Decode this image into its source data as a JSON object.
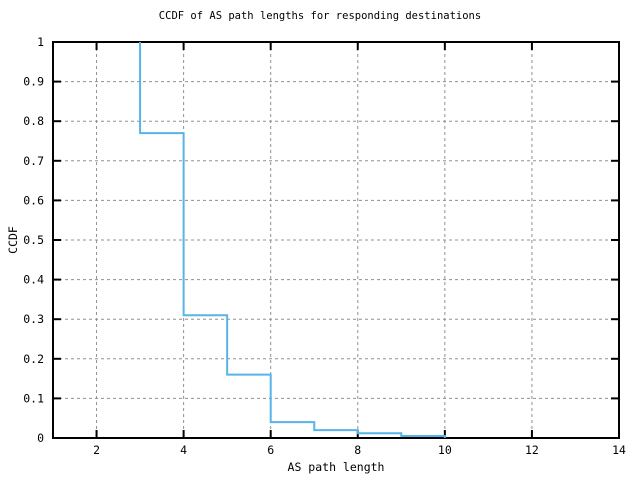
{
  "chart_data": {
    "type": "line",
    "subtype": "step-ccdf",
    "title": "CCDF of AS path lengths for responding destinations",
    "xlabel": "AS path length",
    "ylabel": "CCDF",
    "xlim": [
      1,
      14
    ],
    "ylim": [
      0,
      1
    ],
    "grid": true,
    "legend": "none",
    "xticks": {
      "values": [
        2,
        4,
        6,
        8,
        10,
        12,
        14
      ],
      "labels": [
        "2",
        "4",
        "6",
        "8",
        "10",
        "12",
        "14"
      ]
    },
    "yticks": {
      "values": [
        0,
        0.1,
        0.2,
        0.3,
        0.4,
        0.5,
        0.6,
        0.7,
        0.8,
        0.9,
        1
      ],
      "labels": [
        "0",
        "0.1",
        "0.2",
        "0.3",
        "0.4",
        "0.5",
        "0.6",
        "0.7",
        "0.8",
        "0.9",
        "1"
      ]
    },
    "series": [
      {
        "name": "CCDF of AS path length",
        "start": {
          "x": 3,
          "y": 1.0
        },
        "steps": [
          {
            "x": 3,
            "y": 0.77
          },
          {
            "x": 4,
            "y": 0.31
          },
          {
            "x": 5,
            "y": 0.16
          },
          {
            "x": 6,
            "y": 0.04
          },
          {
            "x": 7,
            "y": 0.02
          },
          {
            "x": 8,
            "y": 0.012
          },
          {
            "x": 9,
            "y": 0.005
          },
          {
            "x": 10,
            "y": 0
          }
        ]
      }
    ],
    "colors": {
      "line": "#56b4e9",
      "grid": "#909090",
      "axis": "#000000",
      "text": "#000000",
      "background": "#ffffff"
    }
  }
}
